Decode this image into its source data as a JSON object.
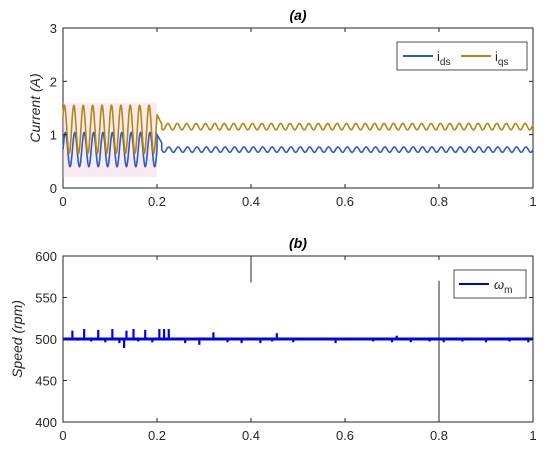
{
  "chart_data": [
    {
      "type": "line",
      "title": "(a)",
      "xlabel": "",
      "ylabel": "Current (A)",
      "xlim": [
        0,
        1
      ],
      "ylim": [
        0,
        3
      ],
      "xticks": [
        "0",
        "0.2",
        "0.4",
        "0.6",
        "0.8",
        "1"
      ],
      "yticks": [
        "0",
        "1",
        "2",
        "3"
      ],
      "grid": false,
      "legend_position": "top-right",
      "series": [
        {
          "name": "i_ds",
          "name_main": "i",
          "name_sub": "ds",
          "color": "#2a5cc4",
          "segments": [
            {
              "x_start": 0.0,
              "x_end": 0.2,
              "mean": 0.72,
              "amplitude": 0.32,
              "period": 0.02
            },
            {
              "x_start": 0.2,
              "x_end": 0.21,
              "from": 1.0,
              "to": 0.85
            },
            {
              "x_start": 0.21,
              "x_end": 1.0,
              "mean": 0.72,
              "amplitude": 0.05,
              "period": 0.02
            }
          ]
        },
        {
          "name": "i_qs",
          "name_main": "i",
          "name_sub": "qs",
          "color": "#b8860b",
          "segments": [
            {
              "x_start": 0.0,
              "x_end": 0.2,
              "mean": 1.1,
              "amplitude": 0.45,
              "period": 0.02
            },
            {
              "x_start": 0.2,
              "x_end": 0.21,
              "from": 1.38,
              "to": 1.2
            },
            {
              "x_start": 0.21,
              "x_end": 1.0,
              "mean": 1.15,
              "amplitude": 0.06,
              "period": 0.02
            }
          ]
        }
      ],
      "shaded_band": {
        "x_start": 0.0,
        "x_end": 0.2,
        "y_low": 0.2,
        "y_high": 1.6,
        "color": "#f2c6de"
      }
    },
    {
      "type": "line",
      "title": "(b)",
      "xlabel": "",
      "ylabel": "Speed (rpm)",
      "xlim": [
        0,
        1
      ],
      "ylim": [
        400,
        600
      ],
      "xticks": [
        "0",
        "0.2",
        "0.4",
        "0.6",
        "0.8",
        "1"
      ],
      "yticks": [
        "400",
        "450",
        "500",
        "550",
        "600"
      ],
      "grid": false,
      "legend_position": "top-right",
      "series": [
        {
          "name": "ω_m",
          "name_main": "ω",
          "name_sub": "m",
          "color": "#0000e6",
          "baseline": 500,
          "spikes": [
            [
              0.02,
              510
            ],
            [
              0.03,
              498
            ],
            [
              0.045,
              512
            ],
            [
              0.06,
              497
            ],
            [
              0.075,
              511
            ],
            [
              0.09,
              496
            ],
            [
              0.105,
              512
            ],
            [
              0.12,
              495
            ],
            [
              0.135,
              510
            ],
            [
              0.13,
              489
            ],
            [
              0.15,
              512
            ],
            [
              0.16,
              497
            ],
            [
              0.175,
              511
            ],
            [
              0.19,
              496
            ],
            [
              0.205,
              512
            ],
            [
              0.215,
              512
            ],
            [
              0.225,
              512
            ],
            [
              0.26,
              495
            ],
            [
              0.29,
              493
            ],
            [
              0.32,
              508
            ],
            [
              0.35,
              496
            ],
            [
              0.38,
              495
            ],
            [
              0.42,
              495
            ],
            [
              0.445,
              497
            ],
            [
              0.455,
              507
            ],
            [
              0.49,
              496
            ],
            [
              0.58,
              495
            ],
            [
              0.66,
              497
            ],
            [
              0.7,
              496
            ],
            [
              0.71,
              504
            ],
            [
              0.74,
              496
            ],
            [
              0.78,
              497
            ],
            [
              0.81,
              496
            ],
            [
              0.85,
              497
            ],
            [
              0.9,
              496
            ],
            [
              0.95,
              497
            ],
            [
              0.99,
              496
            ]
          ]
        }
      ],
      "markers": [
        {
          "x": 0.4,
          "y_low": 568,
          "y_high": 600
        },
        {
          "x": 0.8,
          "y_low": 400,
          "y_high": 570
        }
      ]
    }
  ]
}
